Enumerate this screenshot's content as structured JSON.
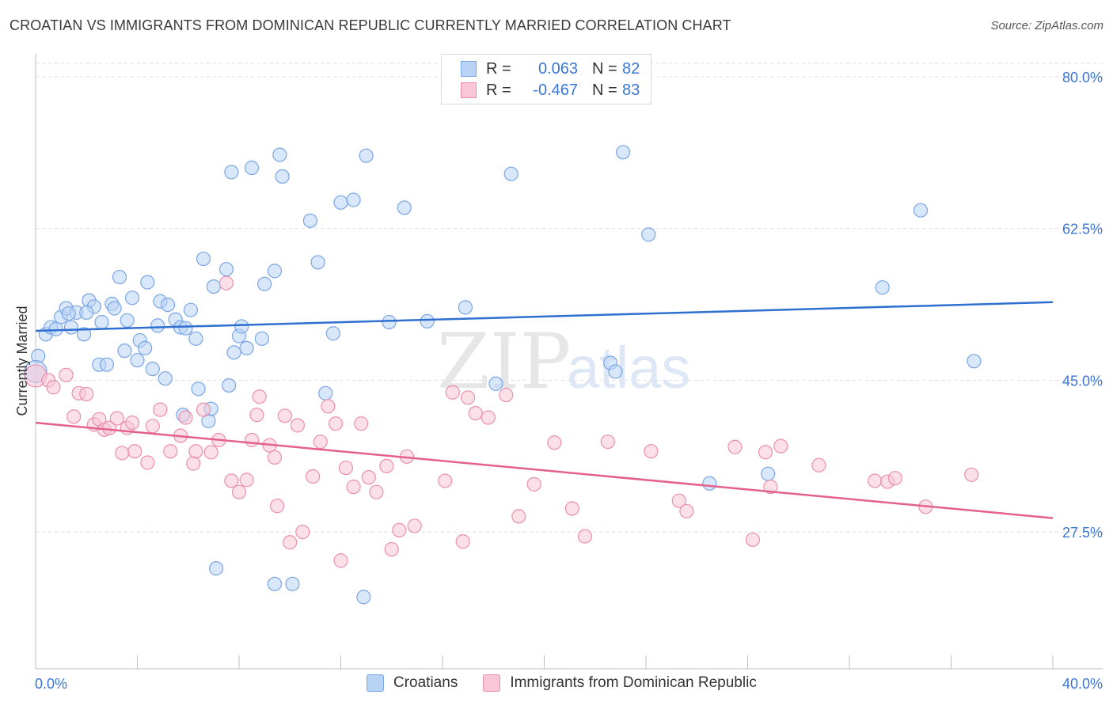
{
  "header": {
    "title": "CROATIAN VS IMMIGRANTS FROM DOMINICAN REPUBLIC CURRENTLY MARRIED CORRELATION CHART",
    "source": "Source: ZipAtlas.com"
  },
  "legend": {
    "rows": [
      {
        "r_label": "R =",
        "r_value": "0.063",
        "n_label": "N =",
        "n_value": "82"
      },
      {
        "r_label": "R =",
        "r_value": "-0.467",
        "n_label": "N =",
        "n_value": "83"
      }
    ]
  },
  "bottom_legend": {
    "items": [
      {
        "label": "Croatians"
      },
      {
        "label": "Immigrants from Dominican Republic"
      }
    ]
  },
  "colors": {
    "blue_fill": "#b9d3f5",
    "blue_stroke": "#7aa6e6",
    "blue_line": "#2f6fd0",
    "pink_fill": "#f8c6d6",
    "pink_stroke": "#eb8fae",
    "pink_line": "#e4608e",
    "tick_label": "#3a76d6",
    "grid": "#dcdcdc"
  },
  "chart_data": {
    "type": "scatter",
    "title": "CROATIAN VS IMMIGRANTS FROM DOMINICAN REPUBLIC CURRENTLY MARRIED CORRELATION CHART",
    "xlabel": "",
    "ylabel": "Currently Married",
    "xlim": [
      0,
      40
    ],
    "ylim": [
      10,
      82.5
    ],
    "x_tick_labels": [
      "0.0%",
      "40.0%"
    ],
    "y_ticks": [
      27.5,
      45.0,
      62.5,
      80.0
    ],
    "y_tick_labels": [
      "27.5%",
      "45.0%",
      "62.5%",
      "80.0%"
    ],
    "grid": "horizontal dashed",
    "watermark": "ZIPatlas",
    "series": [
      {
        "name": "Croatians",
        "r": 0.063,
        "n": 82,
        "trend": [
          [
            0,
            50.7
          ],
          [
            40,
            54.0
          ]
        ],
        "points": [
          [
            0.1,
            47.8
          ],
          [
            0.4,
            50.3
          ],
          [
            0.6,
            51.1
          ],
          [
            0.8,
            50.9
          ],
          [
            1.0,
            52.3
          ],
          [
            1.2,
            53.3
          ],
          [
            1.4,
            51.1
          ],
          [
            1.6,
            52.8
          ],
          [
            1.9,
            50.3
          ],
          [
            2.1,
            54.2
          ],
          [
            2.3,
            53.5
          ],
          [
            2.5,
            46.8
          ],
          [
            2.6,
            51.7
          ],
          [
            2.8,
            46.8
          ],
          [
            3.0,
            53.8
          ],
          [
            3.1,
            53.3
          ],
          [
            3.3,
            56.9
          ],
          [
            3.5,
            48.4
          ],
          [
            3.6,
            51.9
          ],
          [
            3.8,
            54.5
          ],
          [
            4.0,
            47.3
          ],
          [
            4.1,
            49.6
          ],
          [
            4.3,
            48.7
          ],
          [
            4.4,
            56.3
          ],
          [
            4.6,
            46.3
          ],
          [
            4.8,
            51.3
          ],
          [
            4.9,
            54.1
          ],
          [
            5.1,
            45.2
          ],
          [
            5.2,
            53.7
          ],
          [
            5.5,
            52.0
          ],
          [
            5.7,
            51.1
          ],
          [
            5.9,
            51.0
          ],
          [
            5.8,
            41.0
          ],
          [
            6.1,
            53.1
          ],
          [
            6.3,
            49.8
          ],
          [
            6.4,
            44.0
          ],
          [
            6.6,
            59.0
          ],
          [
            6.8,
            40.3
          ],
          [
            6.9,
            41.7
          ],
          [
            7.0,
            55.8
          ],
          [
            7.5,
            57.8
          ],
          [
            7.6,
            44.4
          ],
          [
            7.7,
            69.0
          ],
          [
            7.8,
            48.2
          ],
          [
            8.0,
            50.1
          ],
          [
            8.1,
            51.2
          ],
          [
            8.3,
            48.7
          ],
          [
            8.5,
            69.5
          ],
          [
            8.9,
            49.8
          ],
          [
            9.0,
            56.1
          ],
          [
            9.4,
            57.6
          ],
          [
            9.6,
            71.0
          ],
          [
            9.7,
            68.5
          ],
          [
            10.8,
            63.4
          ],
          [
            11.1,
            58.6
          ],
          [
            11.4,
            43.5
          ],
          [
            11.7,
            50.4
          ],
          [
            12.0,
            65.5
          ],
          [
            12.5,
            65.8
          ],
          [
            13.0,
            70.9
          ],
          [
            13.9,
            51.7
          ],
          [
            14.5,
            64.9
          ],
          [
            15.4,
            51.8
          ],
          [
            16.9,
            53.4
          ],
          [
            18.1,
            44.6
          ],
          [
            18.7,
            68.8
          ],
          [
            22.6,
            47.0
          ],
          [
            22.8,
            46.0
          ],
          [
            23.1,
            71.3
          ],
          [
            24.1,
            61.8
          ],
          [
            26.5,
            33.1
          ],
          [
            28.8,
            34.2
          ],
          [
            33.3,
            55.7
          ],
          [
            34.8,
            64.6
          ],
          [
            36.9,
            47.2
          ],
          [
            7.1,
            23.3
          ],
          [
            9.4,
            21.5
          ],
          [
            10.1,
            21.5
          ],
          [
            12.9,
            20.0
          ],
          [
            0.0,
            46.0
          ],
          [
            1.3,
            52.7
          ],
          [
            2.0,
            52.8
          ]
        ]
      },
      {
        "name": "Immigrants from Dominican Republic",
        "r": -0.467,
        "n": 83,
        "trend": [
          [
            0,
            40.1
          ],
          [
            40,
            29.1
          ]
        ],
        "points": [
          [
            0.0,
            45.5
          ],
          [
            0.5,
            45.0
          ],
          [
            0.7,
            44.2
          ],
          [
            1.2,
            45.6
          ],
          [
            1.5,
            40.8
          ],
          [
            1.7,
            43.5
          ],
          [
            2.0,
            43.4
          ],
          [
            2.3,
            39.9
          ],
          [
            2.5,
            40.5
          ],
          [
            2.7,
            39.3
          ],
          [
            2.9,
            39.5
          ],
          [
            3.2,
            40.6
          ],
          [
            3.4,
            36.6
          ],
          [
            3.6,
            39.5
          ],
          [
            3.8,
            40.1
          ],
          [
            3.9,
            36.8
          ],
          [
            4.4,
            35.5
          ],
          [
            4.6,
            39.7
          ],
          [
            4.9,
            41.6
          ],
          [
            5.3,
            36.8
          ],
          [
            5.7,
            38.6
          ],
          [
            5.9,
            40.7
          ],
          [
            6.2,
            35.4
          ],
          [
            6.3,
            36.8
          ],
          [
            6.6,
            41.6
          ],
          [
            6.9,
            36.7
          ],
          [
            7.2,
            38.1
          ],
          [
            7.5,
            56.2
          ],
          [
            7.7,
            33.4
          ],
          [
            8.0,
            32.1
          ],
          [
            8.3,
            33.5
          ],
          [
            8.5,
            38.1
          ],
          [
            8.8,
            43.1
          ],
          [
            9.2,
            37.5
          ],
          [
            9.4,
            36.1
          ],
          [
            9.5,
            30.5
          ],
          [
            9.8,
            40.9
          ],
          [
            10.0,
            26.3
          ],
          [
            10.3,
            39.8
          ],
          [
            10.5,
            27.5
          ],
          [
            10.9,
            33.9
          ],
          [
            11.2,
            37.9
          ],
          [
            11.5,
            42.0
          ],
          [
            11.8,
            40.0
          ],
          [
            12.0,
            24.2
          ],
          [
            12.2,
            34.9
          ],
          [
            12.5,
            32.7
          ],
          [
            12.8,
            40.0
          ],
          [
            13.1,
            33.8
          ],
          [
            13.4,
            32.1
          ],
          [
            13.8,
            35.1
          ],
          [
            14.0,
            25.5
          ],
          [
            14.3,
            27.7
          ],
          [
            14.6,
            36.2
          ],
          [
            14.9,
            28.2
          ],
          [
            16.1,
            33.4
          ],
          [
            16.4,
            43.6
          ],
          [
            16.8,
            26.4
          ],
          [
            17.3,
            41.2
          ],
          [
            17.8,
            40.7
          ],
          [
            18.5,
            43.3
          ],
          [
            19.0,
            29.3
          ],
          [
            19.6,
            33.0
          ],
          [
            20.4,
            37.8
          ],
          [
            21.1,
            30.2
          ],
          [
            21.6,
            27.0
          ],
          [
            22.5,
            37.9
          ],
          [
            24.2,
            36.8
          ],
          [
            25.3,
            31.1
          ],
          [
            25.6,
            29.9
          ],
          [
            27.5,
            37.3
          ],
          [
            28.2,
            26.6
          ],
          [
            28.7,
            36.7
          ],
          [
            28.9,
            32.7
          ],
          [
            29.3,
            37.4
          ],
          [
            30.8,
            35.2
          ],
          [
            33.0,
            33.4
          ],
          [
            33.5,
            33.3
          ],
          [
            33.8,
            33.7
          ],
          [
            35.0,
            30.4
          ],
          [
            36.8,
            34.1
          ],
          [
            17.0,
            43.0
          ],
          [
            8.7,
            41.0
          ]
        ]
      }
    ]
  }
}
